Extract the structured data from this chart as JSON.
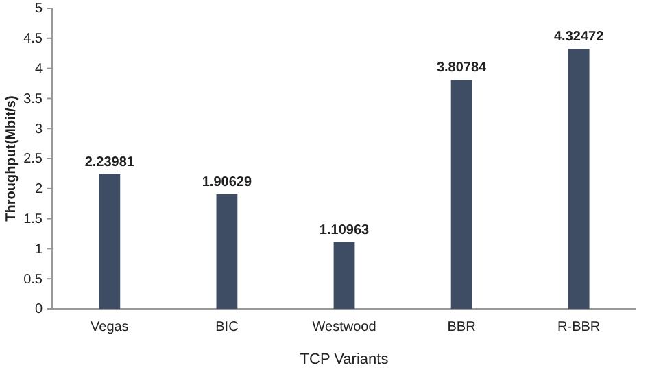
{
  "chart_data": {
    "type": "bar",
    "xlabel": "TCP Variants",
    "ylabel": "Throughput(Mbit/s)",
    "categories": [
      "Vegas",
      "BIC",
      "Westwood",
      "BBR",
      "R-BBR"
    ],
    "values": [
      2.23981,
      1.90629,
      1.10963,
      3.80784,
      4.32472
    ],
    "color": "#3e4d63",
    "data_labels": true,
    "grid": false,
    "ylim": [
      0,
      5
    ],
    "yticks": [
      0,
      0.5,
      1,
      1.5,
      2,
      2.5,
      3,
      3.5,
      4,
      4.5,
      5
    ]
  }
}
